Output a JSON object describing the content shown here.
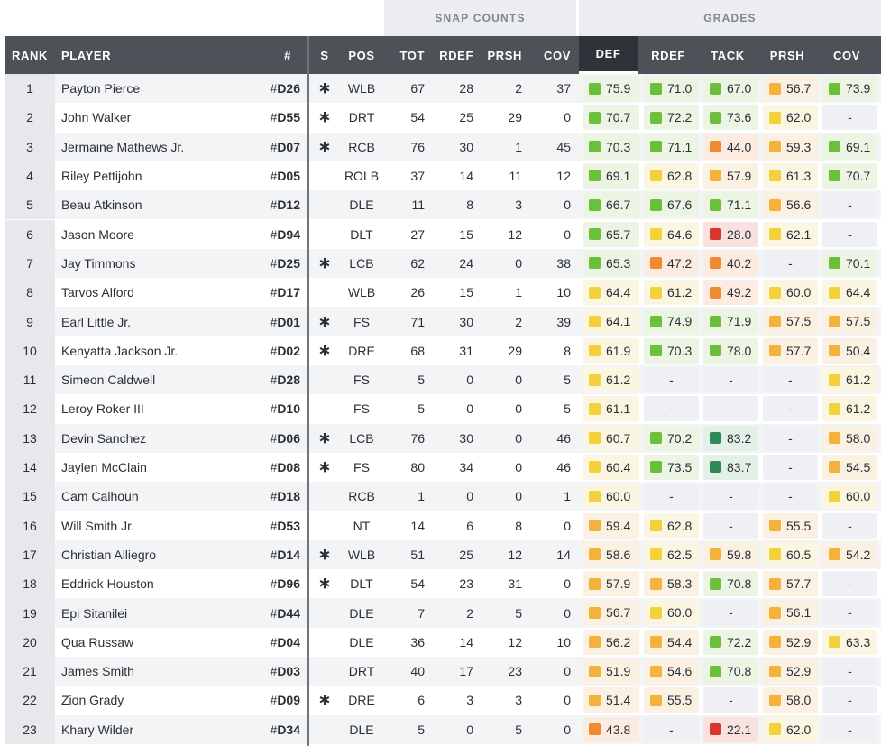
{
  "groups": {
    "snap_counts": "SNAP COUNTS",
    "grades": "GRADES"
  },
  "headers": {
    "rank": "RANK",
    "player": "PLAYER",
    "num": "#",
    "s": "S",
    "pos": "POS",
    "tot": "TOT",
    "rdef_snap": "RDEF",
    "prsh_snap": "PRSH",
    "cov_snap": "COV",
    "def": "DEF",
    "rdef": "RDEF",
    "tack": "TACK",
    "prsh": "PRSH",
    "cov": "COV"
  },
  "colors": {
    "dark_green": "#2e8b57",
    "green": "#6cbf3a",
    "yellow_green": "#bcc836",
    "yellow": "#f2d13a",
    "orange_yellow": "#f4b23c",
    "orange": "#ee8a2f",
    "red": "#d9362b",
    "empty_bg": "#eef0f3"
  },
  "rows": [
    {
      "rank": "1",
      "player": "Payton Pierce",
      "num": "D26",
      "star": "∗",
      "pos": "WLB",
      "tot": "67",
      "rdef_snap": "28",
      "prsh_snap": "2",
      "cov_snap": "37",
      "def": "75.9",
      "rdef": "71.0",
      "tack": "67.0",
      "prsh": "56.7",
      "cov": "73.9"
    },
    {
      "rank": "2",
      "player": "John Walker",
      "num": "D55",
      "star": "∗",
      "pos": "DRT",
      "tot": "54",
      "rdef_snap": "25",
      "prsh_snap": "29",
      "cov_snap": "0",
      "def": "70.7",
      "rdef": "72.2",
      "tack": "73.6",
      "prsh": "62.0",
      "cov": "-"
    },
    {
      "rank": "3",
      "player": "Jermaine Mathews Jr.",
      "num": "D07",
      "star": "∗",
      "pos": "RCB",
      "tot": "76",
      "rdef_snap": "30",
      "prsh_snap": "1",
      "cov_snap": "45",
      "def": "70.3",
      "rdef": "71.1",
      "tack": "44.0",
      "prsh": "59.3",
      "cov": "69.1"
    },
    {
      "rank": "4",
      "player": "Riley Pettijohn",
      "num": "D05",
      "star": "",
      "pos": "ROLB",
      "tot": "37",
      "rdef_snap": "14",
      "prsh_snap": "11",
      "cov_snap": "12",
      "def": "69.1",
      "rdef": "62.8",
      "tack": "57.9",
      "prsh": "61.3",
      "cov": "70.7"
    },
    {
      "rank": "5",
      "player": "Beau Atkinson",
      "num": "D12",
      "star": "",
      "pos": "DLE",
      "tot": "11",
      "rdef_snap": "8",
      "prsh_snap": "3",
      "cov_snap": "0",
      "def": "66.7",
      "rdef": "67.6",
      "tack": "71.1",
      "prsh": "56.6",
      "cov": "-"
    },
    {
      "rank": "6",
      "player": "Jason Moore",
      "num": "D94",
      "star": "",
      "pos": "DLT",
      "tot": "27",
      "rdef_snap": "15",
      "prsh_snap": "12",
      "cov_snap": "0",
      "def": "65.7",
      "rdef": "64.6",
      "tack": "28.0",
      "prsh": "62.1",
      "cov": "-"
    },
    {
      "rank": "7",
      "player": "Jay Timmons",
      "num": "D25",
      "star": "∗",
      "pos": "LCB",
      "tot": "62",
      "rdef_snap": "24",
      "prsh_snap": "0",
      "cov_snap": "38",
      "def": "65.3",
      "rdef": "47.2",
      "tack": "40.2",
      "prsh": "-",
      "cov": "70.1"
    },
    {
      "rank": "8",
      "player": "Tarvos Alford",
      "num": "D17",
      "star": "",
      "pos": "WLB",
      "tot": "26",
      "rdef_snap": "15",
      "prsh_snap": "1",
      "cov_snap": "10",
      "def": "64.4",
      "rdef": "61.2",
      "tack": "49.2",
      "prsh": "60.0",
      "cov": "64.4"
    },
    {
      "rank": "9",
      "player": "Earl Little Jr.",
      "num": "D01",
      "star": "∗",
      "pos": "FS",
      "tot": "71",
      "rdef_snap": "30",
      "prsh_snap": "2",
      "cov_snap": "39",
      "def": "64.1",
      "rdef": "74.9",
      "tack": "71.9",
      "prsh": "57.5",
      "cov": "57.5"
    },
    {
      "rank": "10",
      "player": "Kenyatta Jackson Jr.",
      "num": "D02",
      "star": "∗",
      "pos": "DRE",
      "tot": "68",
      "rdef_snap": "31",
      "prsh_snap": "29",
      "cov_snap": "8",
      "def": "61.9",
      "rdef": "70.3",
      "tack": "78.0",
      "prsh": "57.7",
      "cov": "50.4"
    },
    {
      "rank": "11",
      "player": "Simeon Caldwell",
      "num": "D28",
      "star": "",
      "pos": "FS",
      "tot": "5",
      "rdef_snap": "0",
      "prsh_snap": "0",
      "cov_snap": "5",
      "def": "61.2",
      "rdef": "-",
      "tack": "-",
      "prsh": "-",
      "cov": "61.2"
    },
    {
      "rank": "12",
      "player": "Leroy Roker III",
      "num": "D10",
      "star": "",
      "pos": "FS",
      "tot": "5",
      "rdef_snap": "0",
      "prsh_snap": "0",
      "cov_snap": "5",
      "def": "61.1",
      "rdef": "-",
      "tack": "-",
      "prsh": "-",
      "cov": "61.2"
    },
    {
      "rank": "13",
      "player": "Devin Sanchez",
      "num": "D06",
      "star": "∗",
      "pos": "LCB",
      "tot": "76",
      "rdef_snap": "30",
      "prsh_snap": "0",
      "cov_snap": "46",
      "def": "60.7",
      "rdef": "70.2",
      "tack": "83.2",
      "prsh": "-",
      "cov": "58.0"
    },
    {
      "rank": "14",
      "player": "Jaylen McClain",
      "num": "D08",
      "star": "∗",
      "pos": "FS",
      "tot": "80",
      "rdef_snap": "34",
      "prsh_snap": "0",
      "cov_snap": "46",
      "def": "60.4",
      "rdef": "73.5",
      "tack": "83.7",
      "prsh": "-",
      "cov": "54.5"
    },
    {
      "rank": "15",
      "player": "Cam Calhoun",
      "num": "D18",
      "star": "",
      "pos": "RCB",
      "tot": "1",
      "rdef_snap": "0",
      "prsh_snap": "0",
      "cov_snap": "1",
      "def": "60.0",
      "rdef": "-",
      "tack": "-",
      "prsh": "-",
      "cov": "60.0"
    },
    {
      "rank": "16",
      "player": "Will Smith Jr.",
      "num": "D53",
      "star": "",
      "pos": "NT",
      "tot": "14",
      "rdef_snap": "6",
      "prsh_snap": "8",
      "cov_snap": "0",
      "def": "59.4",
      "rdef": "62.8",
      "tack": "-",
      "prsh": "55.5",
      "cov": "-"
    },
    {
      "rank": "17",
      "player": "Christian Alliegro",
      "num": "D14",
      "star": "∗",
      "pos": "WLB",
      "tot": "51",
      "rdef_snap": "25",
      "prsh_snap": "12",
      "cov_snap": "14",
      "def": "58.6",
      "rdef": "62.5",
      "tack": "59.8",
      "prsh": "60.5",
      "cov": "54.2"
    },
    {
      "rank": "18",
      "player": "Eddrick Houston",
      "num": "D96",
      "star": "∗",
      "pos": "DLT",
      "tot": "54",
      "rdef_snap": "23",
      "prsh_snap": "31",
      "cov_snap": "0",
      "def": "57.9",
      "rdef": "58.3",
      "tack": "70.8",
      "prsh": "57.7",
      "cov": "-"
    },
    {
      "rank": "19",
      "player": "Epi Sitanilei",
      "num": "D44",
      "star": "",
      "pos": "DLE",
      "tot": "7",
      "rdef_snap": "2",
      "prsh_snap": "5",
      "cov_snap": "0",
      "def": "56.7",
      "rdef": "60.0",
      "tack": "-",
      "prsh": "56.1",
      "cov": "-"
    },
    {
      "rank": "20",
      "player": "Qua Russaw",
      "num": "D04",
      "star": "",
      "pos": "DLE",
      "tot": "36",
      "rdef_snap": "14",
      "prsh_snap": "12",
      "cov_snap": "10",
      "def": "56.2",
      "rdef": "54.4",
      "tack": "72.2",
      "prsh": "52.9",
      "cov": "63.3"
    },
    {
      "rank": "21",
      "player": "James Smith",
      "num": "D03",
      "star": "",
      "pos": "DRT",
      "tot": "40",
      "rdef_snap": "17",
      "prsh_snap": "23",
      "cov_snap": "0",
      "def": "51.9",
      "rdef": "54.6",
      "tack": "70.8",
      "prsh": "52.9",
      "cov": "-"
    },
    {
      "rank": "22",
      "player": "Zion Grady",
      "num": "D09",
      "star": "∗",
      "pos": "DRE",
      "tot": "6",
      "rdef_snap": "3",
      "prsh_snap": "3",
      "cov_snap": "0",
      "def": "51.4",
      "rdef": "55.5",
      "tack": "-",
      "prsh": "58.0",
      "cov": "-"
    },
    {
      "rank": "23",
      "player": "Khary Wilder",
      "num": "D34",
      "star": "",
      "pos": "DLE",
      "tot": "5",
      "rdef_snap": "0",
      "prsh_snap": "5",
      "cov_snap": "0",
      "def": "43.8",
      "rdef": "-",
      "tack": "22.1",
      "prsh": "62.0",
      "cov": "-"
    }
  ]
}
